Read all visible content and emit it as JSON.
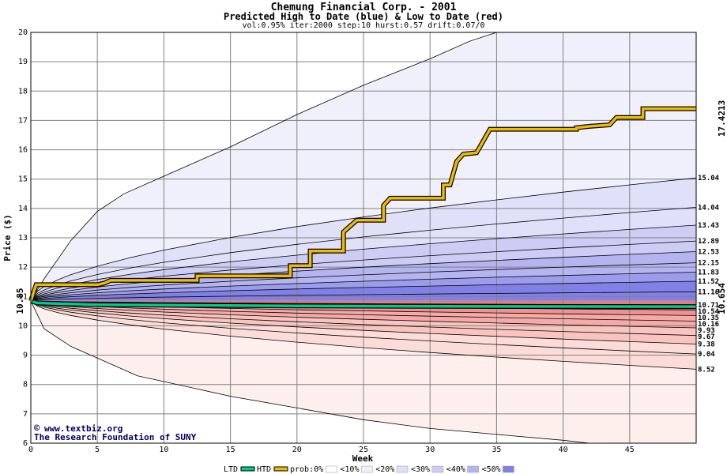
{
  "chart_data": {
    "type": "area",
    "title": "Chemung Financial Corp. - 2001",
    "subtitle": "Predicted High to Date (blue) &  Low to Date (red)",
    "params": "vol:0.95% iter:2000 step:10 hurst:0.57 drift:0.07/0",
    "xlabel": "Week",
    "ylabel": "Price ($)",
    "xlim": [
      0,
      50
    ],
    "ylim": [
      6,
      20
    ],
    "x_ticks": [
      0,
      5,
      10,
      15,
      20,
      25,
      30,
      35,
      40,
      45
    ],
    "y_ticks": [
      6,
      7,
      8,
      9,
      10,
      11,
      12,
      13,
      14,
      15,
      16,
      17,
      18,
      19,
      20
    ],
    "start_price": "10.85",
    "htd_final": "17.4213",
    "ltd_final": "10.654",
    "htd_levels": [
      {
        "label": "15.04",
        "value": 15.04
      },
      {
        "label": "14.04",
        "value": 14.04
      },
      {
        "label": "13.43",
        "value": 13.43
      },
      {
        "label": "12.89",
        "value": 12.89
      },
      {
        "label": "12.53",
        "value": 12.53
      },
      {
        "label": "12.15",
        "value": 12.15
      },
      {
        "label": "11.83",
        "value": 11.83
      },
      {
        "label": "11.52",
        "value": 11.52
      },
      {
        "label": "11.16",
        "value": 11.16
      }
    ],
    "ltd_levels": [
      {
        "label": "10.71",
        "value": 10.71
      },
      {
        "label": "10.54",
        "value": 10.54
      },
      {
        "label": "10.35",
        "value": 10.35
      },
      {
        "label": "10.16",
        "value": 10.16
      },
      {
        "label": "9.93",
        "value": 9.93
      },
      {
        "label": "9.67",
        "value": 9.67
      },
      {
        "label": "9.38",
        "value": 9.38
      },
      {
        "label": "9.04",
        "value": 9.04
      },
      {
        "label": "8.52",
        "value": 8.52
      }
    ],
    "htd_envelope_max": [
      [
        0,
        10.85
      ],
      [
        1,
        11.6
      ],
      [
        3,
        12.9
      ],
      [
        5,
        13.9
      ],
      [
        7,
        14.5
      ],
      [
        10,
        15.1
      ],
      [
        15,
        16.1
      ],
      [
        20,
        17.2
      ],
      [
        25,
        18.2
      ],
      [
        30,
        19.1
      ],
      [
        33,
        19.7
      ],
      [
        35,
        20.0
      ],
      [
        50,
        20.0
      ]
    ],
    "ltd_envelope_min": [
      [
        0,
        10.85
      ],
      [
        1,
        9.9
      ],
      [
        3,
        9.3
      ],
      [
        5,
        8.9
      ],
      [
        8,
        8.3
      ],
      [
        10,
        8.1
      ],
      [
        15,
        7.6
      ],
      [
        20,
        7.2
      ],
      [
        25,
        6.8
      ],
      [
        30,
        6.5
      ],
      [
        35,
        6.3
      ],
      [
        40,
        6.1
      ],
      [
        42,
        6.0
      ],
      [
        50,
        6.0
      ]
    ],
    "htd_path": [
      [
        0,
        10.85
      ],
      [
        0.4,
        11.4
      ],
      [
        5,
        11.4
      ],
      [
        5.5,
        11.45
      ],
      [
        6,
        11.55
      ],
      [
        12.5,
        11.55
      ],
      [
        12.5,
        11.7
      ],
      [
        19.5,
        11.7
      ],
      [
        19.5,
        12.05
      ],
      [
        21,
        12.05
      ],
      [
        21,
        12.55
      ],
      [
        23.5,
        12.55
      ],
      [
        23.5,
        13.2
      ],
      [
        24,
        13.4
      ],
      [
        24.5,
        13.6
      ],
      [
        26.5,
        13.6
      ],
      [
        26.5,
        14.1
      ],
      [
        27,
        14.35
      ],
      [
        31,
        14.35
      ],
      [
        31,
        14.8
      ],
      [
        31.5,
        14.8
      ],
      [
        32,
        15.6
      ],
      [
        32.5,
        15.85
      ],
      [
        33.5,
        15.9
      ],
      [
        34,
        16.3
      ],
      [
        34.5,
        16.7
      ],
      [
        41,
        16.7
      ],
      [
        41,
        16.75
      ],
      [
        42,
        16.8
      ],
      [
        43.5,
        16.85
      ],
      [
        44,
        17.1
      ],
      [
        46,
        17.1
      ],
      [
        46,
        17.4
      ],
      [
        50,
        17.4
      ]
    ],
    "ltd_path": [
      [
        0,
        10.85
      ],
      [
        0.5,
        10.78
      ],
      [
        5,
        10.72
      ],
      [
        20,
        10.68
      ],
      [
        35,
        10.66
      ],
      [
        50,
        10.654
      ]
    ],
    "colors": {
      "htd": "#eebb00",
      "ltd": "#00cc88",
      "blue_bands": [
        "#f0f0fc",
        "#e0e0f8",
        "#ccccf4",
        "#b4b4f0",
        "#9c9cec",
        "#8080e6"
      ],
      "red_bands": [
        "#fdf0ec",
        "#fcdcd8",
        "#f9c4c0",
        "#f6aaa8",
        "#f29090",
        "#ee7878"
      ],
      "grid": "#808080",
      "watermark": "#000066"
    },
    "legend": [
      {
        "label": "LTD",
        "type": "line",
        "color": "#00cc88"
      },
      {
        "label": "HTD",
        "type": "line",
        "color": "#eebb00"
      },
      {
        "label": "prob:0%",
        "type": "swatch",
        "color": "#ffffff"
      },
      {
        "label": "<10%",
        "type": "swatch",
        "color": "#f0f0fc"
      },
      {
        "label": "<20%",
        "type": "swatch",
        "color": "#e0e0f8"
      },
      {
        "label": "<30%",
        "type": "swatch",
        "color": "#ccccf4"
      },
      {
        "label": "<40%",
        "type": "swatch",
        "color": "#b4b4f0"
      },
      {
        "label": "<50%",
        "type": "swatch",
        "color": "#8080e6"
      }
    ]
  },
  "watermark": {
    "site": "www.textbiz.org",
    "org": "The Research Foundation of SUNY"
  }
}
